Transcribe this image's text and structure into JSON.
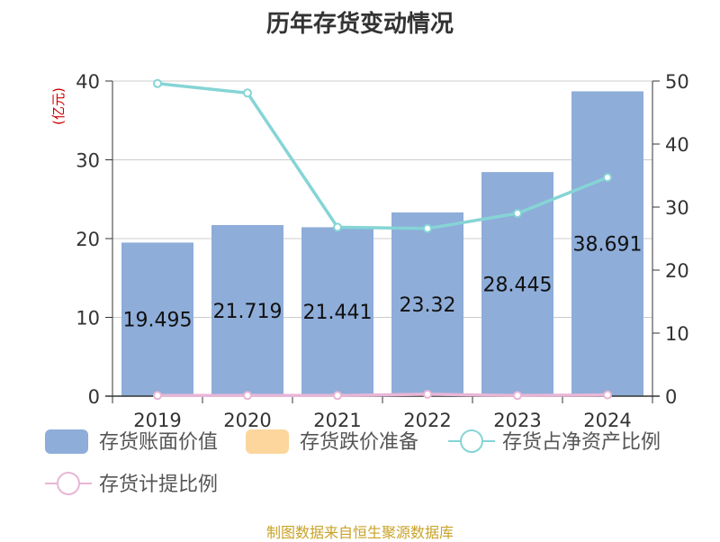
{
  "title": "历年存货变动情况",
  "source_note": "制图数据来自恒生聚源数据库",
  "chart_data": {
    "type": "bar",
    "categories": [
      "2019",
      "2020",
      "2021",
      "2022",
      "2023",
      "2024"
    ],
    "left_axis": {
      "unit": "(亿元)",
      "min": 0,
      "max": 40,
      "ticks": [
        0,
        10,
        20,
        30,
        40
      ]
    },
    "right_axis": {
      "unit": "%",
      "min": 0,
      "max": 50,
      "ticks": [
        0,
        10,
        20,
        30,
        40,
        50
      ]
    },
    "series": [
      {
        "name": "存货账面价值",
        "kind": "bar",
        "axis": "left",
        "color": "#8eadd9",
        "values": [
          19.495,
          21.719,
          21.441,
          23.32,
          28.445,
          38.691
        ],
        "labels": [
          "19.495",
          "21.719",
          "21.441",
          "23.32",
          "28.445",
          "38.691"
        ]
      },
      {
        "name": "存货跌价准备",
        "kind": "bar",
        "axis": "left",
        "color": "#fcd69c",
        "values": [
          0,
          0,
          0,
          0,
          0,
          0
        ]
      },
      {
        "name": "存货占净资产比例",
        "kind": "line",
        "axis": "right",
        "color": "#86d4d6",
        "values": [
          49.6,
          48.1,
          26.8,
          26.6,
          29.0,
          34.7
        ]
      },
      {
        "name": "存货计提比例",
        "kind": "line",
        "axis": "right",
        "color": "#e8b6d6",
        "values": [
          0.1,
          0.1,
          0.1,
          0.3,
          0.1,
          0.2
        ]
      }
    ],
    "grid": true,
    "legend_position": "bottom"
  }
}
